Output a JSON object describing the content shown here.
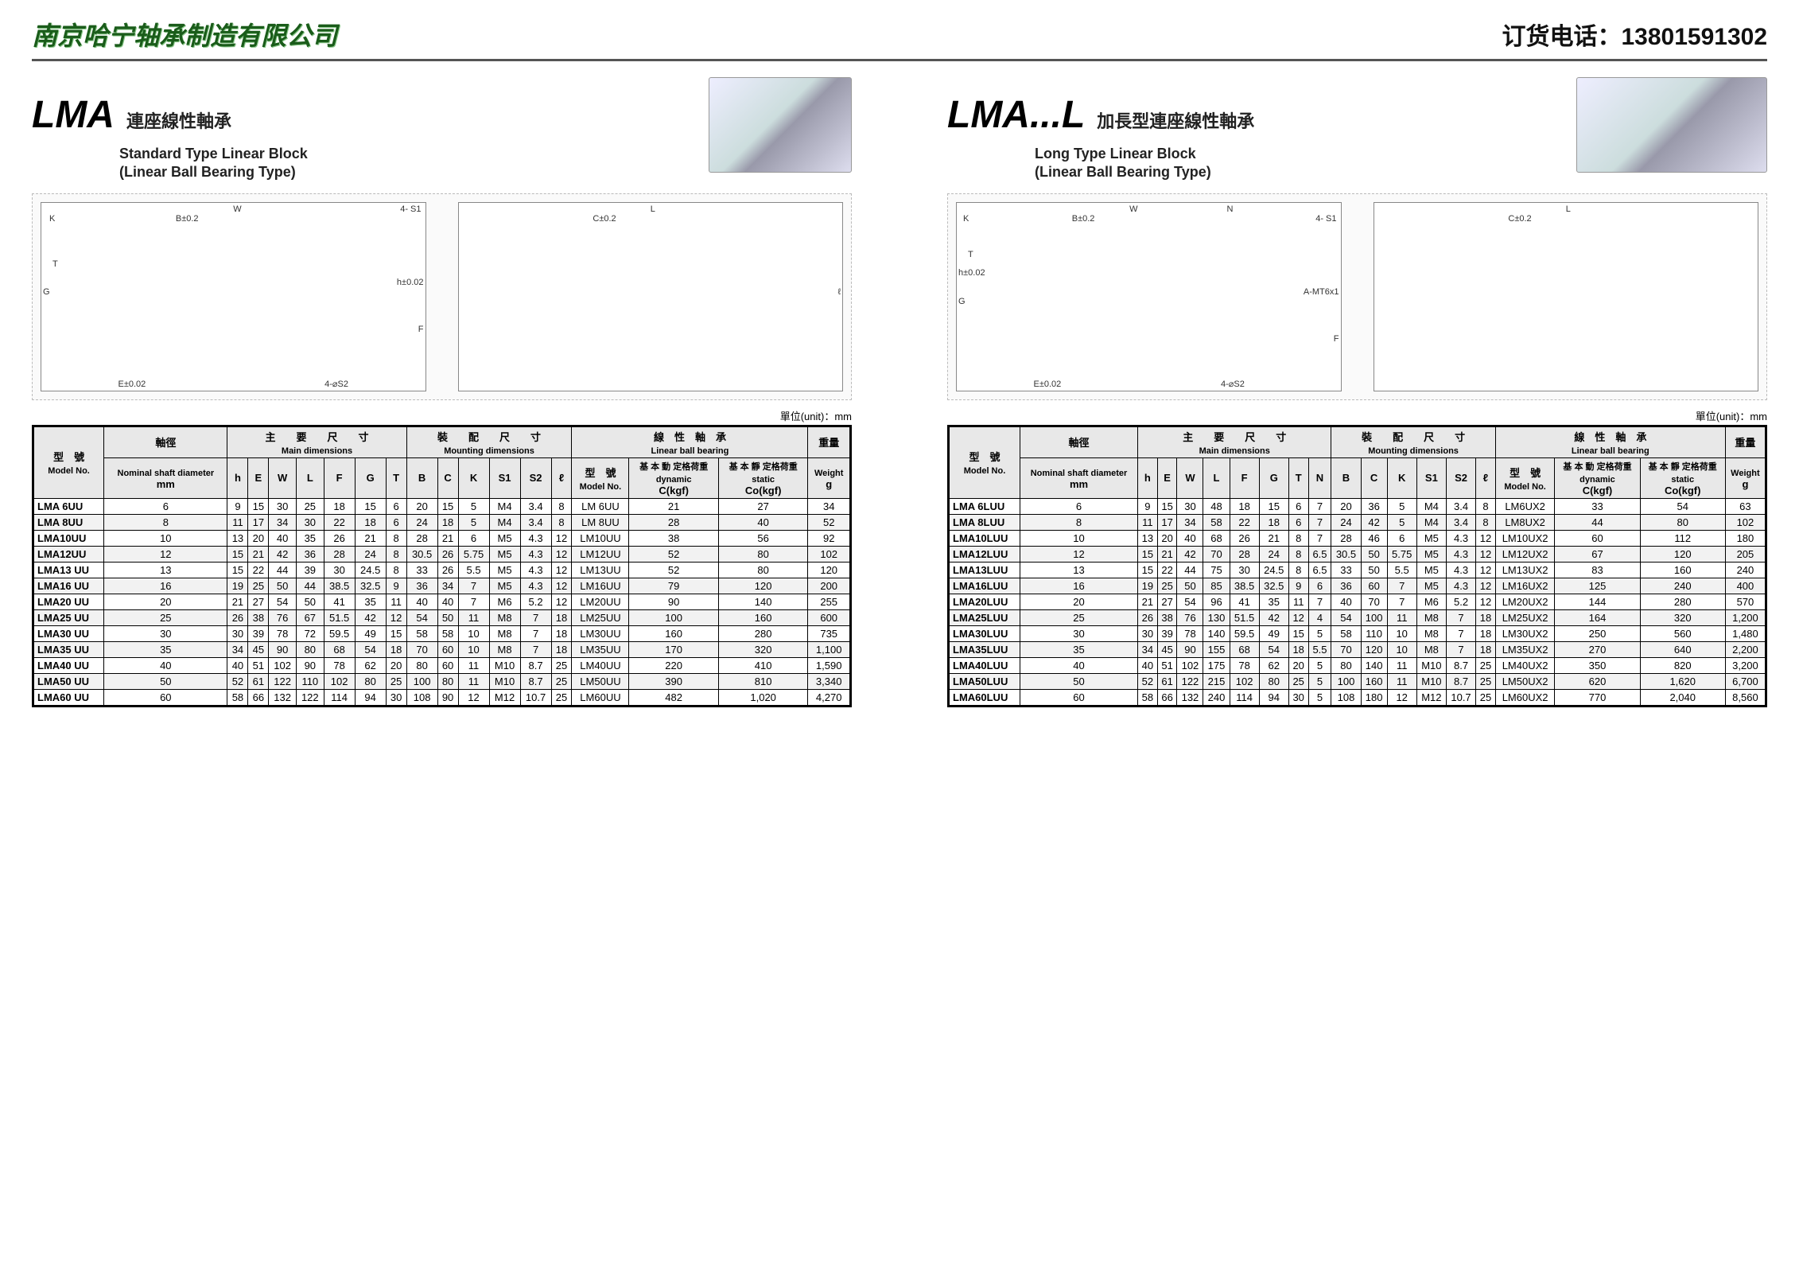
{
  "header": {
    "company": "南京哈宁轴承制造有限公司",
    "phone_label": "订货电话：",
    "phone": "13801591302"
  },
  "colors": {
    "company_green": "#1a5c1a",
    "border": "#000000",
    "header_bg": "#e8e8e8",
    "alt_row": "#f2f2f2"
  },
  "left": {
    "code": "LMA",
    "cn_title": "連座線性軸承",
    "subtitle1": "Standard Type Linear Block",
    "subtitle2": "(Linear Ball Bearing Type)",
    "diagram_labels": [
      "W",
      "K",
      "B±0.2",
      "4- S1",
      "G",
      "T",
      "h±0.02",
      "F",
      "E±0.02",
      "4-⌀S2",
      "L",
      "C±0.2",
      "ℓ"
    ],
    "unit_label": "單位(unit)：mm",
    "table": {
      "group_headers": {
        "model": "型　號",
        "shaft": "軸徑",
        "main": "主　　要　　尺　　寸",
        "main_en": "Main dimensions",
        "mount": "裝　　配　　尺　　寸",
        "mount_en": "Mounting dimensions",
        "bearing": "線　性　軸　承",
        "bearing_en": "Linear ball bearing",
        "weight": "重量"
      },
      "sub_headers": {
        "model": "Model No.",
        "shaft1": "Nominal shaft diameter",
        "shaft2": "mm",
        "h": "h",
        "E": "E",
        "W": "W",
        "L": "L",
        "F": "F",
        "G": "G",
        "T": "T",
        "B": "B",
        "C": "C",
        "K": "K",
        "S1": "S1",
        "S2": "S2",
        "l": "ℓ",
        "bmodel": "Model No.",
        "dyn_cn": "基 本 動 定格荷重",
        "dyn_en": "dynamic",
        "dyn_u": "C(kgf)",
        "stat_cn": "基 本 靜 定格荷重",
        "stat_en": "static",
        "stat_u": "Co(kgf)",
        "weight": "Weight",
        "wg": "g"
      },
      "rows": [
        [
          "LMA 6UU",
          "6",
          "9",
          "15",
          "30",
          "25",
          "18",
          "15",
          "6",
          "20",
          "15",
          "5",
          "M4",
          "3.4",
          "8",
          "LM 6UU",
          "21",
          "27",
          "34"
        ],
        [
          "LMA 8UU",
          "8",
          "11",
          "17",
          "34",
          "30",
          "22",
          "18",
          "6",
          "24",
          "18",
          "5",
          "M4",
          "3.4",
          "8",
          "LM 8UU",
          "28",
          "40",
          "52"
        ],
        [
          "LMA10UU",
          "10",
          "13",
          "20",
          "40",
          "35",
          "26",
          "21",
          "8",
          "28",
          "21",
          "6",
          "M5",
          "4.3",
          "12",
          "LM10UU",
          "38",
          "56",
          "92"
        ],
        [
          "LMA12UU",
          "12",
          "15",
          "21",
          "42",
          "36",
          "28",
          "24",
          "8",
          "30.5",
          "26",
          "5.75",
          "M5",
          "4.3",
          "12",
          "LM12UU",
          "52",
          "80",
          "102"
        ],
        [
          "LMA13 UU",
          "13",
          "15",
          "22",
          "44",
          "39",
          "30",
          "24.5",
          "8",
          "33",
          "26",
          "5.5",
          "M5",
          "4.3",
          "12",
          "LM13UU",
          "52",
          "80",
          "120"
        ],
        [
          "LMA16 UU",
          "16",
          "19",
          "25",
          "50",
          "44",
          "38.5",
          "32.5",
          "9",
          "36",
          "34",
          "7",
          "M5",
          "4.3",
          "12",
          "LM16UU",
          "79",
          "120",
          "200"
        ],
        [
          "LMA20 UU",
          "20",
          "21",
          "27",
          "54",
          "50",
          "41",
          "35",
          "11",
          "40",
          "40",
          "7",
          "M6",
          "5.2",
          "12",
          "LM20UU",
          "90",
          "140",
          "255"
        ],
        [
          "LMA25 UU",
          "25",
          "26",
          "38",
          "76",
          "67",
          "51.5",
          "42",
          "12",
          "54",
          "50",
          "11",
          "M8",
          "7",
          "18",
          "LM25UU",
          "100",
          "160",
          "600"
        ],
        [
          "LMA30 UU",
          "30",
          "30",
          "39",
          "78",
          "72",
          "59.5",
          "49",
          "15",
          "58",
          "58",
          "10",
          "M8",
          "7",
          "18",
          "LM30UU",
          "160",
          "280",
          "735"
        ],
        [
          "LMA35 UU",
          "35",
          "34",
          "45",
          "90",
          "80",
          "68",
          "54",
          "18",
          "70",
          "60",
          "10",
          "M8",
          "7",
          "18",
          "LM35UU",
          "170",
          "320",
          "1,100"
        ],
        [
          "LMA40 UU",
          "40",
          "40",
          "51",
          "102",
          "90",
          "78",
          "62",
          "20",
          "80",
          "60",
          "11",
          "M10",
          "8.7",
          "25",
          "LM40UU",
          "220",
          "410",
          "1,590"
        ],
        [
          "LMA50 UU",
          "50",
          "52",
          "61",
          "122",
          "110",
          "102",
          "80",
          "25",
          "100",
          "80",
          "11",
          "M10",
          "8.7",
          "25",
          "LM50UU",
          "390",
          "810",
          "3,340"
        ],
        [
          "LMA60 UU",
          "60",
          "58",
          "66",
          "132",
          "122",
          "114",
          "94",
          "30",
          "108",
          "90",
          "12",
          "M12",
          "10.7",
          "25",
          "LM60UU",
          "482",
          "1,020",
          "4,270"
        ]
      ]
    }
  },
  "right": {
    "code": "LMA...L",
    "cn_title": "加長型連座線性軸承",
    "subtitle1": "Long Type Linear Block",
    "subtitle2": "(Linear Ball Bearing Type)",
    "diagram_labels": [
      "W",
      "K",
      "B±0.2",
      "N",
      "4- S1",
      "h±0.02",
      "G",
      "T",
      "A-MT6x1",
      "F",
      "E±0.02",
      "4-⌀S2",
      "L",
      "C±0.2"
    ],
    "unit_label": "單位(unit)：mm",
    "table": {
      "group_headers": {
        "model": "型　號",
        "shaft": "軸徑",
        "main": "主　　要　　尺　　寸",
        "main_en": "Main dimensions",
        "mount": "裝　　配　　尺　　寸",
        "mount_en": "Mounting dimensions",
        "bearing": "線　性　軸　承",
        "bearing_en": "Linear ball bearing",
        "weight": "重量"
      },
      "sub_headers": {
        "model": "Model No.",
        "shaft1": "Nominal shaft diameter",
        "shaft2": "mm",
        "h": "h",
        "E": "E",
        "W": "W",
        "L": "L",
        "F": "F",
        "G": "G",
        "T": "T",
        "N": "N",
        "B": "B",
        "C": "C",
        "K": "K",
        "S1": "S1",
        "S2": "S2",
        "l": "ℓ",
        "bmodel": "Model No.",
        "dyn_cn": "基 本 動 定格荷重",
        "dyn_en": "dynamic",
        "dyn_u": "C(kgf)",
        "stat_cn": "基 本 靜 定格荷重",
        "stat_en": "static",
        "stat_u": "Co(kgf)",
        "weight": "Weight",
        "wg": "g"
      },
      "rows": [
        [
          "LMA 6LUU",
          "6",
          "9",
          "15",
          "30",
          "48",
          "18",
          "15",
          "6",
          "7",
          "20",
          "36",
          "5",
          "M4",
          "3.4",
          "8",
          "LM6UX2",
          "33",
          "54",
          "63"
        ],
        [
          "LMA 8LUU",
          "8",
          "11",
          "17",
          "34",
          "58",
          "22",
          "18",
          "6",
          "7",
          "24",
          "42",
          "5",
          "M4",
          "3.4",
          "8",
          "LM8UX2",
          "44",
          "80",
          "102"
        ],
        [
          "LMA10LUU",
          "10",
          "13",
          "20",
          "40",
          "68",
          "26",
          "21",
          "8",
          "7",
          "28",
          "46",
          "6",
          "M5",
          "4.3",
          "12",
          "LM10UX2",
          "60",
          "112",
          "180"
        ],
        [
          "LMA12LUU",
          "12",
          "15",
          "21",
          "42",
          "70",
          "28",
          "24",
          "8",
          "6.5",
          "30.5",
          "50",
          "5.75",
          "M5",
          "4.3",
          "12",
          "LM12UX2",
          "67",
          "120",
          "205"
        ],
        [
          "LMA13LUU",
          "13",
          "15",
          "22",
          "44",
          "75",
          "30",
          "24.5",
          "8",
          "6.5",
          "33",
          "50",
          "5.5",
          "M5",
          "4.3",
          "12",
          "LM13UX2",
          "83",
          "160",
          "240"
        ],
        [
          "LMA16LUU",
          "16",
          "19",
          "25",
          "50",
          "85",
          "38.5",
          "32.5",
          "9",
          "6",
          "36",
          "60",
          "7",
          "M5",
          "4.3",
          "12",
          "LM16UX2",
          "125",
          "240",
          "400"
        ],
        [
          "LMA20LUU",
          "20",
          "21",
          "27",
          "54",
          "96",
          "41",
          "35",
          "11",
          "7",
          "40",
          "70",
          "7",
          "M6",
          "5.2",
          "12",
          "LM20UX2",
          "144",
          "280",
          "570"
        ],
        [
          "LMA25LUU",
          "25",
          "26",
          "38",
          "76",
          "130",
          "51.5",
          "42",
          "12",
          "4",
          "54",
          "100",
          "11",
          "M8",
          "7",
          "18",
          "LM25UX2",
          "164",
          "320",
          "1,200"
        ],
        [
          "LMA30LUU",
          "30",
          "30",
          "39",
          "78",
          "140",
          "59.5",
          "49",
          "15",
          "5",
          "58",
          "110",
          "10",
          "M8",
          "7",
          "18",
          "LM30UX2",
          "250",
          "560",
          "1,480"
        ],
        [
          "LMA35LUU",
          "35",
          "34",
          "45",
          "90",
          "155",
          "68",
          "54",
          "18",
          "5.5",
          "70",
          "120",
          "10",
          "M8",
          "7",
          "18",
          "LM35UX2",
          "270",
          "640",
          "2,200"
        ],
        [
          "LMA40LUU",
          "40",
          "40",
          "51",
          "102",
          "175",
          "78",
          "62",
          "20",
          "5",
          "80",
          "140",
          "11",
          "M10",
          "8.7",
          "25",
          "LM40UX2",
          "350",
          "820",
          "3,200"
        ],
        [
          "LMA50LUU",
          "50",
          "52",
          "61",
          "122",
          "215",
          "102",
          "80",
          "25",
          "5",
          "100",
          "160",
          "11",
          "M10",
          "8.7",
          "25",
          "LM50UX2",
          "620",
          "1,620",
          "6,700"
        ],
        [
          "LMA60LUU",
          "60",
          "58",
          "66",
          "132",
          "240",
          "114",
          "94",
          "30",
          "5",
          "108",
          "180",
          "12",
          "M12",
          "10.7",
          "25",
          "LM60UX2",
          "770",
          "2,040",
          "8,560"
        ]
      ]
    }
  }
}
